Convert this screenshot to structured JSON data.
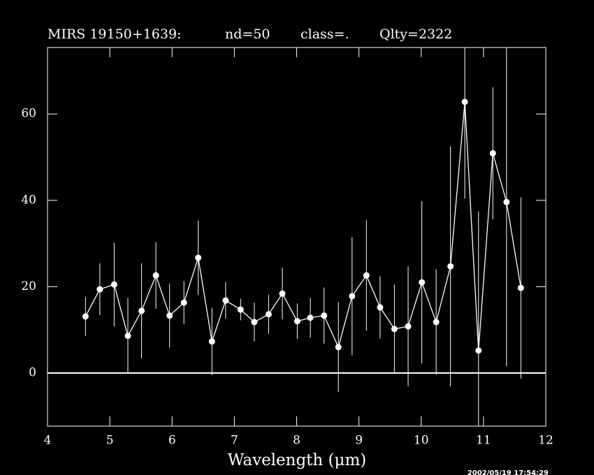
{
  "chart_data": {
    "type": "errorbar",
    "title_parts": [
      "MIRS 19150+1639:",
      "nd=50",
      "class=.",
      "Qlty=2322"
    ],
    "xlabel": "Wavelength (μm)",
    "timestamp": "2002/05/19 17:54:29",
    "xlim": [
      4,
      12
    ],
    "xticks": [
      4,
      5,
      6,
      7,
      8,
      9,
      10,
      11,
      12
    ],
    "ylim": [
      -12.3,
      75.4
    ],
    "yticks": [
      0,
      20,
      40,
      60
    ],
    "color": "#ffffff",
    "x": [
      4.61,
      4.84,
      5.07,
      5.29,
      5.51,
      5.74,
      5.96,
      6.19,
      6.42,
      6.64,
      6.86,
      7.1,
      7.32,
      7.55,
      7.77,
      8.01,
      8.22,
      8.44,
      8.67,
      8.89,
      9.12,
      9.34,
      9.57,
      9.79,
      10.01,
      10.24,
      10.47,
      10.7,
      10.92,
      11.15,
      11.37,
      11.6
    ],
    "values": [
      13.1,
      19.4,
      20.5,
      8.6,
      14.4,
      22.6,
      13.3,
      16.3,
      26.7,
      7.3,
      16.8,
      14.7,
      11.8,
      13.6,
      18.4,
      12.0,
      12.8,
      13.3,
      6.0,
      17.8,
      22.6,
      15.2,
      10.2,
      10.8,
      21.0,
      11.8,
      24.7,
      62.8,
      5.2,
      50.9,
      39.6,
      19.7
    ],
    "errors": [
      4.5,
      6.0,
      9.7,
      8.8,
      11.0,
      7.7,
      7.4,
      5.0,
      8.6,
      7.8,
      4.2,
      2.5,
      4.5,
      4.5,
      6.0,
      4.1,
      4.6,
      6.5,
      10.4,
      13.7,
      12.8,
      7.2,
      10.3,
      13.9,
      18.8,
      12.2,
      27.8,
      22.4,
      32.2,
      15.3,
      38.0,
      21.0
    ]
  }
}
